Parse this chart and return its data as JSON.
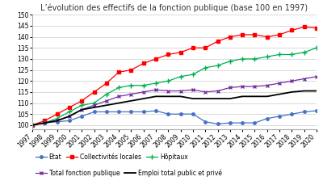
{
  "title": "L’évolution des effectifs de la fonction publique (base 100 en 1997)",
  "years": [
    1997,
    1998,
    1999,
    2000,
    2001,
    2002,
    2003,
    2004,
    2005,
    2006,
    2007,
    2008,
    2009,
    2010,
    2011,
    2012,
    2013,
    2014,
    2015,
    2016,
    2017,
    2018,
    2019,
    2020
  ],
  "etat": [
    100,
    101,
    101.5,
    102,
    104,
    106,
    106,
    106,
    106,
    106,
    106.5,
    105,
    105,
    105,
    101.5,
    100.5,
    101,
    101,
    101,
    103,
    104,
    105,
    106,
    106.5
  ],
  "collectivites": [
    100,
    102,
    105,
    108,
    111,
    115,
    119,
    124,
    125,
    128,
    130,
    132,
    133,
    135,
    135,
    138,
    140,
    141,
    141,
    140,
    141,
    143,
    144.5,
    144
  ],
  "hopitaux": [
    100,
    101,
    103,
    106,
    109,
    110,
    114,
    117,
    118,
    118,
    119,
    120,
    122,
    123,
    126,
    127,
    129,
    130,
    130,
    131,
    132,
    132,
    133,
    135
  ],
  "total_fp": [
    100,
    101,
    102,
    104,
    107,
    109,
    111,
    113,
    114,
    115,
    116,
    115.5,
    115.5,
    116,
    115,
    115.5,
    117,
    117.5,
    117.5,
    118,
    119,
    120,
    121,
    122
  ],
  "emploi_total": [
    100,
    101,
    102,
    104,
    107,
    108,
    109,
    110,
    111,
    112,
    113,
    113,
    113,
    112,
    112,
    112,
    112,
    113,
    113,
    113,
    114,
    115,
    115.5,
    115.5
  ],
  "colors": {
    "etat": "#4472C4",
    "collectivites": "#FF0000",
    "hopitaux": "#00B050",
    "total_fp": "#7030A0",
    "emploi_total": "#000000"
  },
  "ylim": [
    98,
    150
  ],
  "yticks": [
    100,
    105,
    110,
    115,
    120,
    125,
    130,
    135,
    140,
    145,
    150
  ],
  "legend_labels": {
    "etat": "Etat",
    "collectivites": "Collectivités locales",
    "hopitaux": "Hôpitaux",
    "total_fp": "Total fonction publique",
    "emploi_total": "Emploi total public et privé"
  },
  "bg_color": "#ffffff",
  "title_fontsize": 7,
  "tick_fontsize": 5.5,
  "legend_fontsize": 5.5
}
